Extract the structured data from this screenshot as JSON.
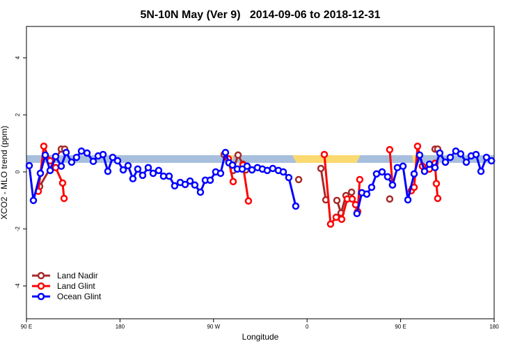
{
  "chart_data": {
    "type": "line",
    "title": "5N-10N May (Ver 9)   2014-09-06 to 2018-12-31",
    "xlabel": "Longitude",
    "ylabel": "XCO2 - MLO trend (ppm)",
    "xlim": [
      90,
      540
    ],
    "xticks": [
      {
        "value": 90,
        "label": "90 E"
      },
      {
        "value": 180,
        "label": "180"
      },
      {
        "value": 270,
        "label": "90 W"
      },
      {
        "value": 360,
        "label": "0"
      },
      {
        "value": 450,
        "label": "90 E"
      },
      {
        "value": 540,
        "label": "180"
      }
    ],
    "ylim": [
      -5.15,
      5.1
    ],
    "yticks": [
      -4,
      -2,
      0,
      2,
      4
    ],
    "legend": "bottomleft",
    "series": [
      {
        "name": "Land Nadir",
        "color": "#a52a2a",
        "x": [
          102.7,
          123.5,
          126.8,
          null,
          280.2,
          288.9,
          293.6,
          298.3,
          301.0,
          null,
          351.9,
          null,
          373.3,
          378.0,
          null,
          388.7,
          392.7,
          397.4,
          402.8,
          null,
          439.5,
          null,
          461.7,
          null,
          483.1,
          485.7
        ],
        "values": [
          -0.51,
          0.8,
          0.8,
          null,
          0.61,
          0.05,
          0.59,
          0.27,
          0.07,
          null,
          -0.27,
          null,
          0.12,
          -0.98,
          null,
          -1.0,
          -1.44,
          -0.83,
          -0.71,
          null,
          -0.95,
          null,
          -0.56,
          null,
          0.8,
          0.8
        ]
      },
      {
        "name": "Land Glint",
        "color": "#ff0000",
        "x": [
          101.4,
          106.7,
          112.8,
          118.1,
          124.8,
          126.2,
          null,
          284.2,
          288.9,
          null,
          298.3,
          303.6,
          null,
          376.6,
          382.6,
          388.0,
          393.3,
          398.7,
          403.4,
          406.7,
          408.7,
          410.7,
          null,
          439.5,
          442.2,
          null,
          460.3,
          463.0,
          466.3,
          471.0,
          477.7,
          483.1,
          484.4,
          485.7
        ],
        "values": [
          -0.68,
          0.9,
          0.39,
          0.15,
          -0.39,
          -0.93,
          null,
          0.46,
          -0.34,
          null,
          0.24,
          -1.02,
          null,
          0.61,
          -1.83,
          -1.59,
          -1.66,
          -0.95,
          -0.95,
          -1.15,
          -1.39,
          -0.27,
          null,
          0.78,
          -0.46,
          null,
          -0.66,
          -0.54,
          0.9,
          0.2,
          0.1,
          0.3,
          -0.41,
          -0.93
        ]
      },
      {
        "name": "Ocean Glint",
        "color": "#0000ff",
        "x": [
          92.7,
          96.7,
          103.4,
          108.1,
          112.8,
          118.1,
          123.5,
          128.2,
          133.5,
          138.2,
          142.9,
          148.3,
          154.3,
          159.0,
          163.7,
          168.3,
          173.0,
          177.7,
          183.1,
          187.8,
          192.4,
          197.1,
          201.8,
          207.2,
          211.9,
          217.2,
          221.9,
          227.3,
          232.6,
          238.0,
          242.7,
          247.4,
          252.0,
          257.4,
          262.1,
          266.8,
          272.1,
          276.8,
          281.5,
          284.8,
          288.2,
          292.9,
          297.6,
          302.3,
          307.0,
          312.3,
          317.0,
          321.7,
          327.0,
          332.4,
          337.1,
          342.4,
          349.1,
          null,
          408.0,
          412.7,
          417.4,
          422.1,
          426.8,
          432.2,
          437.5,
          442.2,
          446.9,
          452.3,
          457.0,
          463.0,
          468.3,
          473.0,
          477.7,
          483.1,
          487.7,
          493.1,
          497.8,
          503.1,
          507.8,
          513.2,
          517.9,
          522.6,
          527.3,
          532.6,
          537.4
        ],
        "values": [
          0.22,
          -1.0,
          -0.05,
          0.59,
          0.05,
          0.54,
          0.2,
          0.68,
          0.34,
          0.51,
          0.73,
          0.66,
          0.37,
          0.56,
          0.61,
          0.02,
          0.51,
          0.39,
          0.07,
          0.22,
          -0.24,
          0.1,
          -0.12,
          0.15,
          -0.05,
          0.05,
          -0.15,
          -0.15,
          -0.49,
          -0.37,
          -0.44,
          -0.32,
          -0.46,
          -0.71,
          -0.29,
          -0.29,
          0,
          -0.05,
          0.68,
          0.32,
          0.24,
          0.1,
          0.1,
          0.2,
          0.07,
          0.15,
          0.1,
          0.05,
          0.12,
          0.05,
          0,
          -0.2,
          -1.2,
          null,
          -1.46,
          -0.73,
          -0.78,
          -0.54,
          -0.07,
          0,
          -0.17,
          -0.46,
          0.15,
          0.2,
          -0.98,
          -0.07,
          0.59,
          0.02,
          0.27,
          0.15,
          0.66,
          0.34,
          0.51,
          0.73,
          0.63,
          0.34,
          0.56,
          0.61,
          0.02,
          0.51,
          0.39
        ]
      }
    ]
  }
}
